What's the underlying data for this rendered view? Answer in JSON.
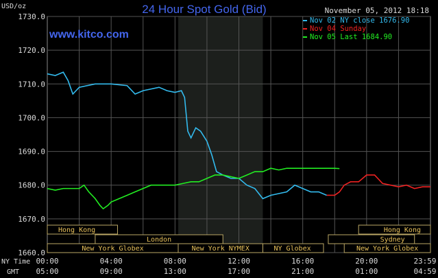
{
  "chart_data": {
    "type": "line",
    "title": "24 Hour Spot Gold (Bid)",
    "watermark": "www.kitco.com",
    "timestamp": "November 05, 2012 18:18",
    "ylabel": "USD/oz",
    "ylim": [
      1660,
      1730
    ],
    "yticks": [
      "1730.0",
      "1720.0",
      "1710.0",
      "1700.0",
      "1690.0",
      "1680.0",
      "1670.0",
      "1660.0"
    ],
    "ytick_values": [
      1730,
      1720,
      1710,
      1700,
      1690,
      1680,
      1670,
      1660
    ],
    "xlim": [
      0,
      24
    ],
    "x_row_labels": [
      "NY Time",
      "GMT"
    ],
    "ny_ticks": [
      "00:00",
      "04:00",
      "08:00",
      "12:00",
      "16:00",
      "20:00",
      "23:59"
    ],
    "gmt_ticks": [
      "05:00",
      "09:00",
      "13:00",
      "17:00",
      "21:00",
      "01:00",
      "04:59"
    ],
    "tick_hours": [
      0,
      4,
      8,
      12,
      16,
      20,
      24
    ],
    "shaded_hours": [
      8.2,
      13.5
    ],
    "series": [
      {
        "name": "Nov 02 NY close 1676.90",
        "color": "#33bbee",
        "x": [
          0,
          0.5,
          1,
          1.3,
          1.6,
          2,
          3,
          4,
          5,
          5.5,
          6,
          7,
          7.5,
          8,
          8.4,
          8.6,
          8.8,
          9,
          9.3,
          9.6,
          10,
          10.3,
          10.6,
          11,
          11.5,
          12,
          12.5,
          13,
          13.5,
          14,
          15,
          15.5,
          16,
          16.5,
          17,
          17.5
        ],
        "y": [
          1713,
          1712.5,
          1713.5,
          1711,
          1707,
          1709,
          1710,
          1710,
          1709.5,
          1707,
          1708,
          1709,
          1708,
          1707.5,
          1708,
          1706,
          1696,
          1694,
          1697,
          1696,
          1693,
          1689,
          1684,
          1683,
          1682,
          1682,
          1680,
          1679,
          1676,
          1677,
          1678,
          1680,
          1679,
          1678,
          1678,
          1677
        ]
      },
      {
        "name": "Nov 04 Sunday",
        "color": "#ee2222",
        "x": [
          17.5,
          18,
          18.3,
          18.6,
          19,
          19.5,
          20,
          20.5,
          21,
          21.5,
          22,
          22.5,
          23,
          23.5,
          24
        ],
        "y": [
          1677,
          1677,
          1678,
          1680,
          1681,
          1681,
          1683,
          1683,
          1680.5,
          1680,
          1679.5,
          1680,
          1679,
          1679.5,
          1679.5
        ]
      },
      {
        "name": "Nov 05 Last 1684.90",
        "color": "#22ee22",
        "x": [
          0,
          0.5,
          1,
          1.5,
          2,
          2.3,
          2.6,
          3,
          3.3,
          3.5,
          3.8,
          4,
          4.5,
          5,
          5.5,
          6,
          6.5,
          7,
          7.5,
          8,
          8.5,
          9,
          9.5,
          10,
          10.5,
          11,
          11.5,
          12,
          12.5,
          13,
          13.5,
          14,
          14.5,
          15,
          16,
          17,
          18,
          18.3
        ],
        "y": [
          1679,
          1678.5,
          1679,
          1679,
          1679,
          1680,
          1678,
          1676,
          1674,
          1673,
          1674,
          1675,
          1676,
          1677,
          1678,
          1679,
          1680,
          1680,
          1680,
          1680,
          1680.5,
          1681,
          1681,
          1682,
          1683,
          1683,
          1682.5,
          1682,
          1683,
          1684,
          1684,
          1685,
          1684.5,
          1685,
          1685,
          1685,
          1685,
          1684.9
        ]
      }
    ],
    "sessions": [
      {
        "name": "Hong Kong",
        "row": 0,
        "start": 0,
        "end": 4.4,
        "label_align": "start"
      },
      {
        "name": "Hong Kong",
        "row": 0,
        "start": 19.5,
        "end": 24,
        "label_align": "end"
      },
      {
        "name": "London",
        "row": 1,
        "start": 3,
        "end": 11,
        "label_align": "middle"
      },
      {
        "name": "Sydney",
        "row": 1,
        "start": 17.6,
        "end": 23,
        "label_align": "end"
      },
      {
        "name": "New York Globex",
        "row": 2,
        "start": 0,
        "end": 8.2,
        "label_align": "middle"
      },
      {
        "name": "New York NYMEX",
        "row": 2,
        "start": 8.2,
        "end": 13.5,
        "label_align": "middle"
      },
      {
        "name": "NY Globex",
        "row": 2,
        "start": 13.5,
        "end": 17.3,
        "label_align": "start"
      },
      {
        "name": "New York Globex",
        "row": 2,
        "start": 18.6,
        "end": 24,
        "label_align": "middle"
      }
    ]
  }
}
